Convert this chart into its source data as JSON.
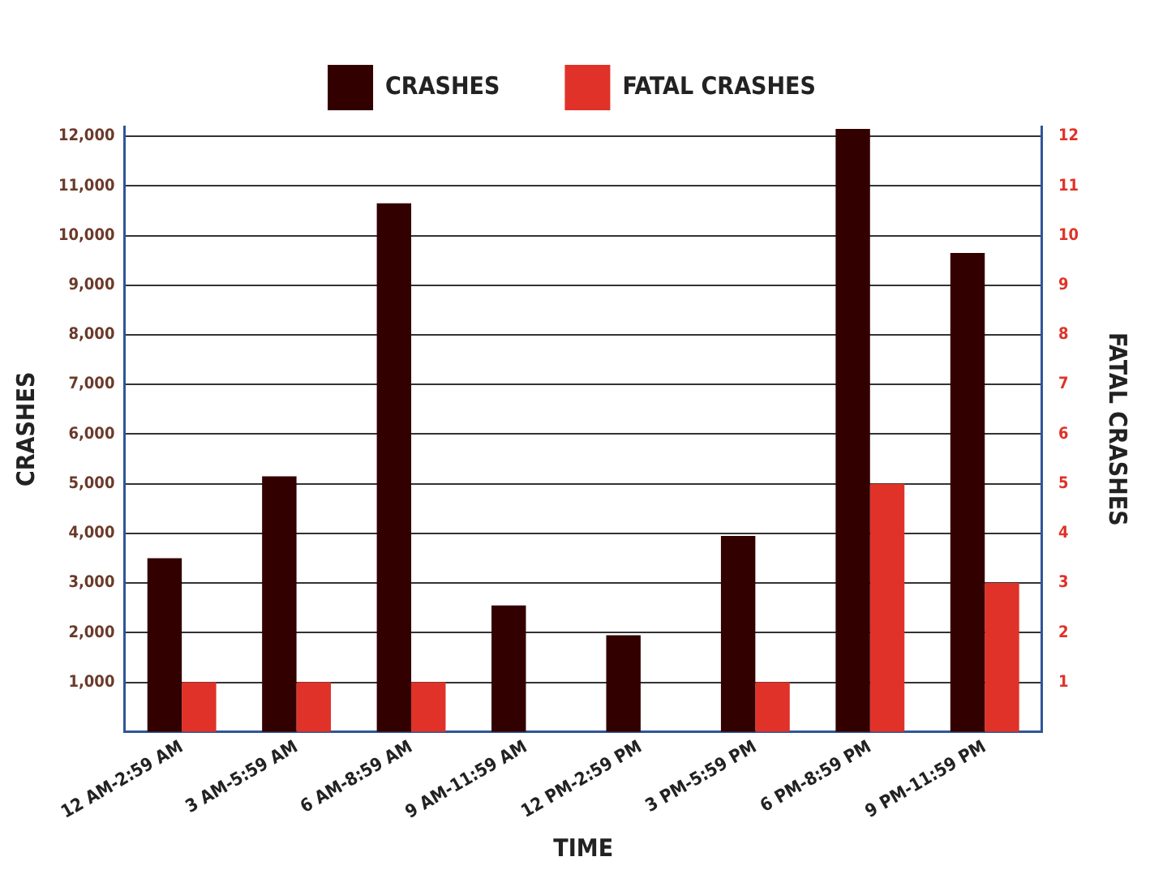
{
  "chart_data": {
    "type": "bar",
    "xlabel": "TIME",
    "ylabel": "CRASHES",
    "y2label": "FATAL CRASHES",
    "categories": [
      "12 AM-2:59 AM",
      "3 AM-5:59 AM",
      "6 AM-8:59 AM",
      "9 AM-11:59 AM",
      "12 PM-2:59 PM",
      "3 PM-5:59 PM",
      "6 PM-8:59 PM",
      "9 PM-11:59 PM"
    ],
    "series": [
      {
        "name": "CRASHES",
        "color": "#330000",
        "values": [
          3500,
          5150,
          10650,
          2550,
          1950,
          3950,
          12150,
          9650
        ]
      },
      {
        "name": "FATAL CRASHES",
        "color": "#e03228",
        "axis": "y2",
        "values": [
          1,
          1,
          1,
          0,
          0,
          1,
          5,
          3
        ]
      }
    ],
    "ylim": [
      0,
      12200
    ],
    "yticks": [
      {
        "value": 1000,
        "label": "1,000"
      },
      {
        "value": 2000,
        "label": "2,000"
      },
      {
        "value": 3000,
        "label": "3,000"
      },
      {
        "value": 4000,
        "label": "4,000"
      },
      {
        "value": 5000,
        "label": "5,000"
      },
      {
        "value": 6000,
        "label": "6,000"
      },
      {
        "value": 7000,
        "label": "7,000"
      },
      {
        "value": 8000,
        "label": "8,000"
      },
      {
        "value": 9000,
        "label": "9,000"
      },
      {
        "value": 10000,
        "label": "10,000"
      },
      {
        "value": 11000,
        "label": "11,000"
      },
      {
        "value": 12000,
        "label": "12,000"
      }
    ],
    "y2lim": [
      0,
      12.2
    ],
    "y2ticks": [
      1,
      2,
      3,
      4,
      5,
      6,
      7,
      8,
      9,
      10,
      11,
      12
    ],
    "grid": "y",
    "legend": "top"
  }
}
